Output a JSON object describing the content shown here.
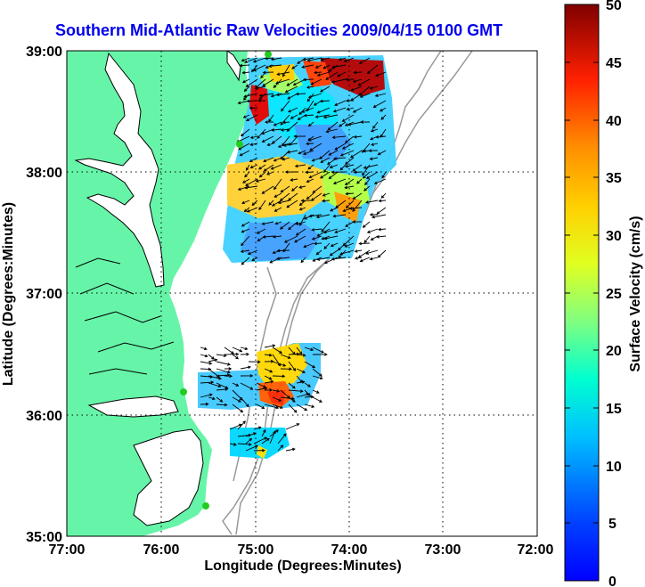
{
  "title": "Southern Mid-Atlantic Raw Velocities 2009/04/15 0100 GMT",
  "x_axis": {
    "label": "Longitude (Degrees:Minutes)",
    "ticks": [
      "77:00",
      "76:00",
      "75:00",
      "74:00",
      "73:00",
      "72:00"
    ]
  },
  "y_axis": {
    "label": "Latitude (Degrees:Minutes)",
    "ticks": [
      "39:00",
      "38:00",
      "37:00",
      "36:00",
      "35:00"
    ]
  },
  "colorbar": {
    "label": "Surface Velocity (cm/s)",
    "ticks": [
      "50",
      "45",
      "40",
      "35",
      "30",
      "25",
      "20",
      "15",
      "10",
      "5",
      "0"
    ],
    "range": [
      0,
      50
    ],
    "colormap": "jet"
  },
  "map": {
    "lon_range": [
      -77,
      -72
    ],
    "lat_range": [
      35,
      39
    ],
    "grid": "dotted",
    "land_color": "#66f5a8",
    "water_color": "#ffffff",
    "coastline_color": "#000000",
    "bathymetry_color": "#999999",
    "station_color": "#22cc22",
    "vector_color": "#000000"
  }
}
